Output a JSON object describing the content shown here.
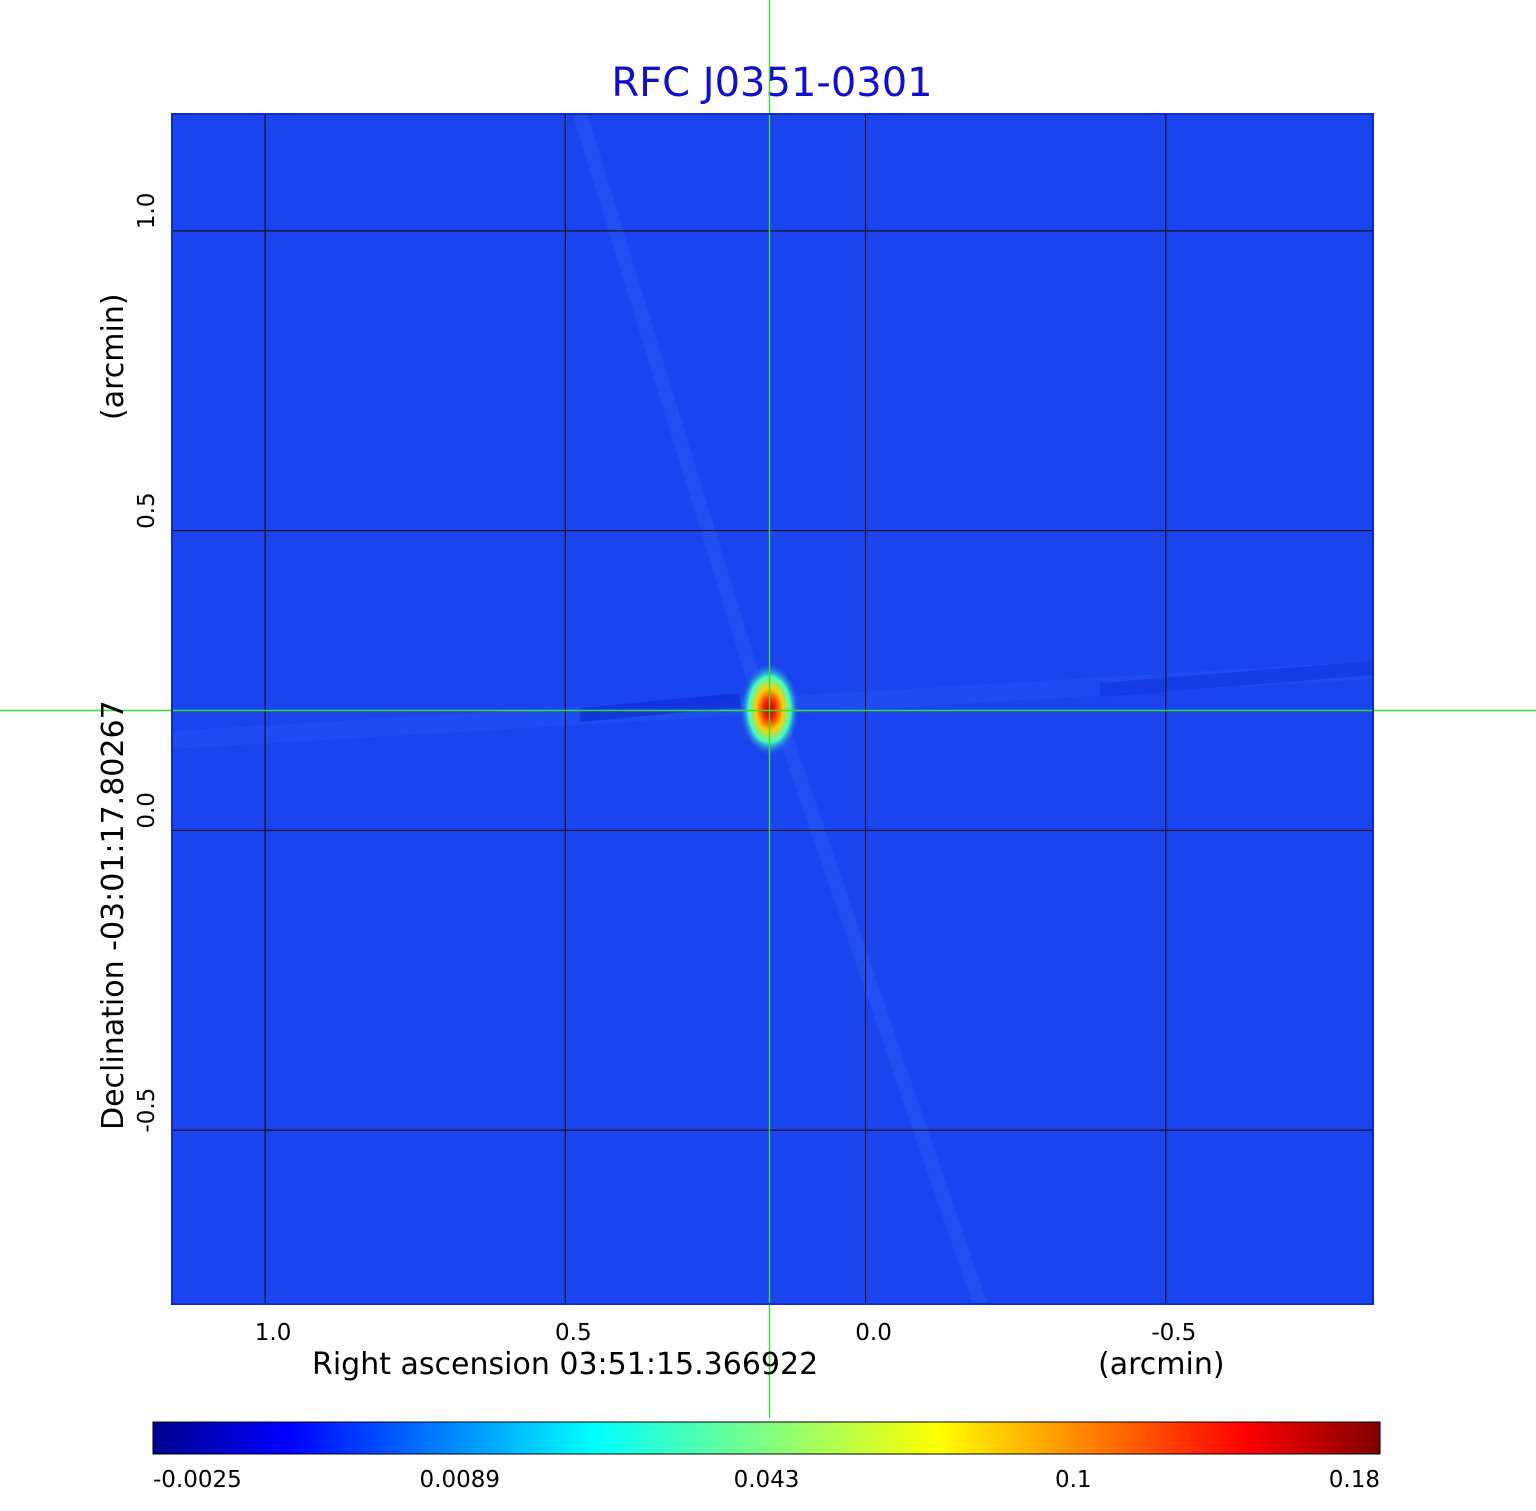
{
  "chart_data": {
    "type": "heatmap",
    "title": "RFC J0351-0301",
    "xlabel": "Right ascension  03:51:15.366922",
    "xunit": "(arcmin)",
    "ylabel": "Declination  -03:01:17.80267",
    "yunit": "(arcmin)",
    "x_ticks": [
      1.0,
      0.5,
      0.0,
      -0.5
    ],
    "x_tick_labels": [
      "1.0",
      "0.5",
      "0.0",
      "-0.5"
    ],
    "y_ticks": [
      1.0,
      0.5,
      0.0,
      -0.5
    ],
    "y_tick_labels": [
      "1.0",
      "0.5",
      "0.0",
      "-0.5"
    ],
    "xlim": [
      1.155,
      -0.845
    ],
    "ylim": [
      -0.79,
      1.195
    ],
    "grid": true,
    "crosshair": {
      "x": 0.16,
      "y": 0.2,
      "color": "#33dd33"
    },
    "source_peak": {
      "x": 0.16,
      "y": 0.2,
      "value": 0.18
    },
    "colorbar": {
      "colormap": "jet",
      "tick_labels": [
        "-0.0025",
        "0.0089",
        "0.043",
        "0.1",
        "0.18"
      ],
      "range": [
        -0.0025,
        0.18
      ]
    },
    "background_color": "#1a45ee"
  }
}
